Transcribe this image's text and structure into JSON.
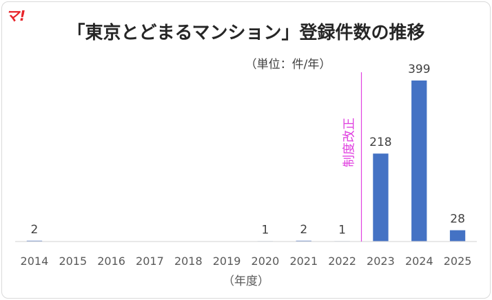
{
  "logo": "マ!",
  "chart_data": {
    "type": "bar",
    "title": "「東京とどまるマンション」登録件数の推移",
    "unit_note": "（単位：件/年）",
    "xlabel": "（年度）",
    "ylabel": "",
    "categories": [
      "2014",
      "2015",
      "2016",
      "2017",
      "2018",
      "2019",
      "2020",
      "2021",
      "2022",
      "2023",
      "2024",
      "2025"
    ],
    "values": [
      2,
      0,
      0,
      0,
      0,
      0,
      1,
      2,
      1,
      218,
      399,
      28
    ],
    "data_labels": [
      "2",
      "",
      "",
      "",
      "",
      "",
      "1",
      "2",
      "1",
      "218",
      "399",
      "28"
    ],
    "ylim": [
      0,
      420
    ],
    "grid": false,
    "legend": "none",
    "annotation": {
      "text": "制度改正",
      "between": [
        "2022",
        "2023"
      ]
    },
    "colors": {
      "bar": "#4472c4",
      "annotation": "#e040e0",
      "logo": "#e8242a",
      "text": "#404040"
    }
  }
}
